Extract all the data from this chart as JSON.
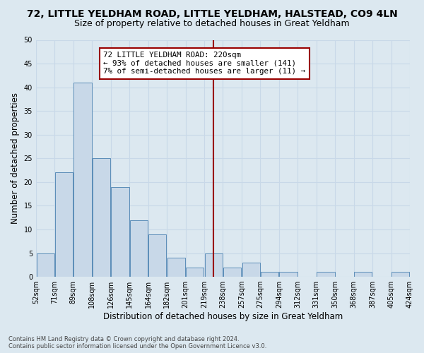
{
  "title": "72, LITTLE YELDHAM ROAD, LITTLE YELDHAM, HALSTEAD, CO9 4LN",
  "subtitle": "Size of property relative to detached houses in Great Yeldham",
  "xlabel": "Distribution of detached houses by size in Great Yeldham",
  "ylabel": "Number of detached properties",
  "bar_values": [
    5,
    22,
    41,
    25,
    19,
    12,
    9,
    4,
    2,
    5,
    2,
    3,
    1,
    1,
    0,
    1,
    0,
    1,
    0,
    1
  ],
  "bin_labels": [
    "52sqm",
    "71sqm",
    "89sqm",
    "108sqm",
    "126sqm",
    "145sqm",
    "164sqm",
    "182sqm",
    "201sqm",
    "219sqm",
    "238sqm",
    "257sqm",
    "275sqm",
    "294sqm",
    "312sqm",
    "331sqm",
    "350sqm",
    "368sqm",
    "387sqm",
    "405sqm",
    "424sqm"
  ],
  "bar_color": "#c8d8e8",
  "bar_edge_color": "#5b8db8",
  "vline_index": 9,
  "vline_color": "#990000",
  "annotation_text": "72 LITTLE YELDHAM ROAD: 220sqm\n← 93% of detached houses are smaller (141)\n7% of semi-detached houses are larger (11) →",
  "annotation_box_color": "#ffffff",
  "annotation_border_color": "#990000",
  "ylim": [
    0,
    50
  ],
  "yticks": [
    0,
    5,
    10,
    15,
    20,
    25,
    30,
    35,
    40,
    45,
    50
  ],
  "grid_color": "#c8d8e8",
  "bg_color": "#dce8f0",
  "footer_line1": "Contains HM Land Registry data © Crown copyright and database right 2024.",
  "footer_line2": "Contains public sector information licensed under the Open Government Licence v3.0.",
  "title_fontsize": 10,
  "subtitle_fontsize": 9,
  "axis_label_fontsize": 8.5,
  "tick_fontsize": 7
}
